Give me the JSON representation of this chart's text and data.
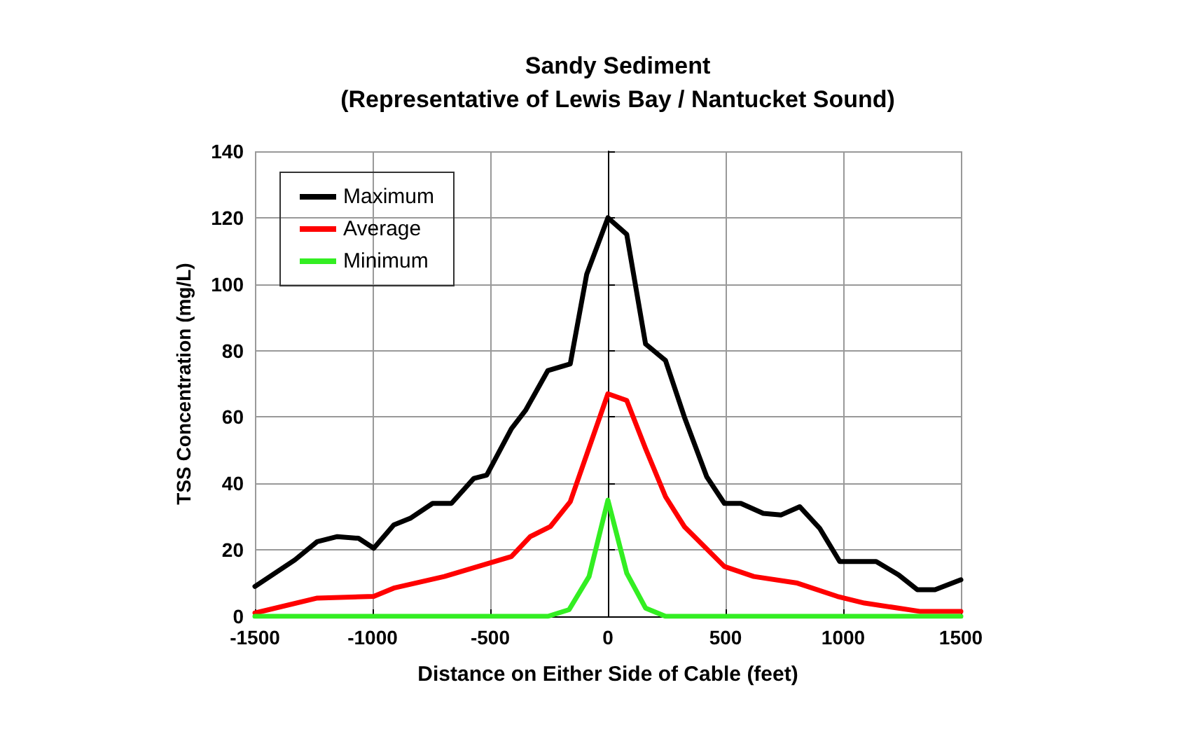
{
  "chart_data": {
    "type": "line",
    "title": "Sandy Sediment\n(Representative of Lewis Bay / Nantucket Sound)",
    "xlabel": "Distance on Either Side of Cable (feet)",
    "ylabel": "TSS Concentration (mg/L)",
    "xlim": [
      -1500,
      1500
    ],
    "xticks": [
      -1500,
      -1000,
      -500,
      0,
      500,
      1000,
      1500
    ],
    "ylim": [
      0,
      140
    ],
    "yticks": [
      0,
      20,
      40,
      60,
      80,
      100,
      120,
      140
    ],
    "grid": true,
    "legend": "top left",
    "marker": "none",
    "line_style": "solid",
    "series": [
      {
        "name": "Maximum",
        "color": "#000000",
        "x": [
          -1500,
          -1330,
          -1235,
          -1150,
          -1060,
          -995,
          -910,
          -840,
          -745,
          -665,
          -570,
          -515,
          -410,
          -350,
          -255,
          -160,
          -90,
          0,
          80,
          160,
          245,
          325,
          420,
          495,
          565,
          660,
          735,
          815,
          900,
          985,
          1140,
          1235,
          1315,
          1390,
          1500
        ],
        "values": [
          9,
          17,
          22.5,
          24,
          23.5,
          20.5,
          27.5,
          29.5,
          34,
          34,
          41.5,
          42.5,
          56.5,
          62,
          74,
          76,
          103,
          120,
          115,
          82,
          77,
          60,
          42,
          34,
          34,
          31,
          30.5,
          33,
          26.5,
          16.5,
          16.5,
          12.5,
          8,
          8,
          11
        ]
      },
      {
        "name": "Average",
        "color": "#ff0000",
        "x": [
          -1500,
          -1235,
          -995,
          -910,
          -695,
          -505,
          -410,
          -330,
          -245,
          -160,
          0,
          80,
          160,
          245,
          325,
          495,
          620,
          805,
          975,
          1090,
          1325,
          1500
        ],
        "values": [
          1,
          5.5,
          6,
          8.5,
          12,
          16,
          18,
          24,
          27,
          34.5,
          67,
          65,
          50.5,
          36,
          27,
          15,
          12,
          10,
          6,
          4,
          1.5,
          1.5
        ]
      },
      {
        "name": "Minimum",
        "color": "#33ee22",
        "x": [
          -1500,
          -255,
          -165,
          -80,
          0,
          80,
          160,
          245,
          1500
        ],
        "values": [
          0,
          0,
          2,
          12,
          35,
          13,
          2.5,
          0,
          0
        ]
      }
    ]
  }
}
